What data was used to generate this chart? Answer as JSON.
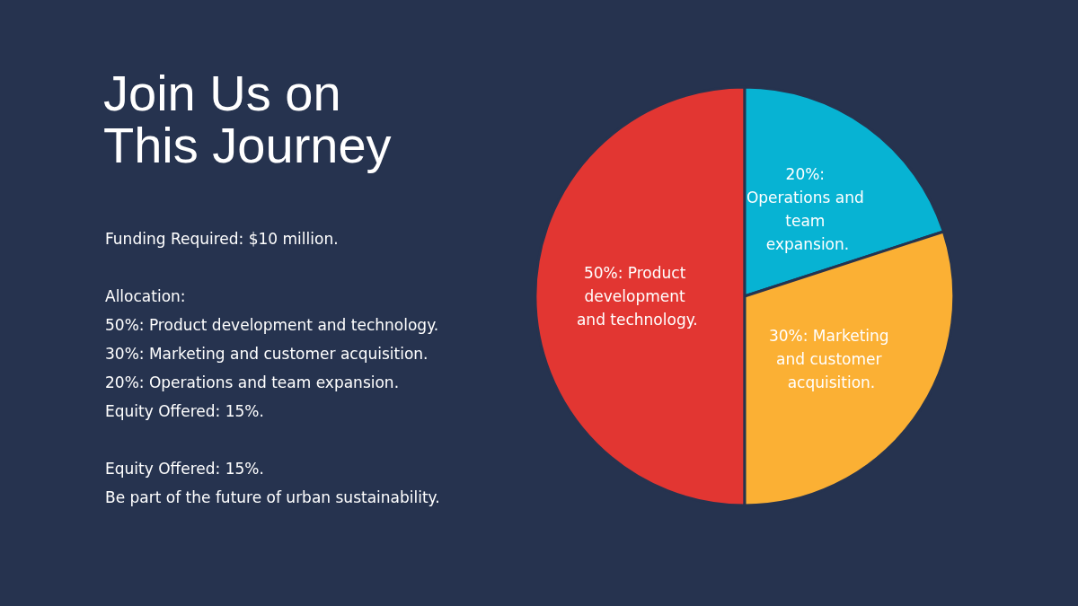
{
  "chart_data": {
    "type": "pie",
    "title": "Join Us on This Journey",
    "categories": [
      "Operations and team expansion.",
      "Marketing and customer acquisition.",
      "Product development and technology."
    ],
    "values": [
      20,
      30,
      50
    ],
    "colors": [
      "#07b3d3",
      "#fbb034",
      "#e23632"
    ],
    "value_labels": [
      "20%:",
      "30%:",
      "50%:"
    ],
    "legend": false,
    "annotations": [
      "Funding Required: $10 million.",
      "Allocation:\n50%: Product development and technology.\n30%: Marketing and customer acquisition.\n20%: Operations and team expansion.\nEquity Offered: 15%.",
      "Equity Offered: 15%.\nBe part of the future of urban sustainability."
    ]
  }
}
